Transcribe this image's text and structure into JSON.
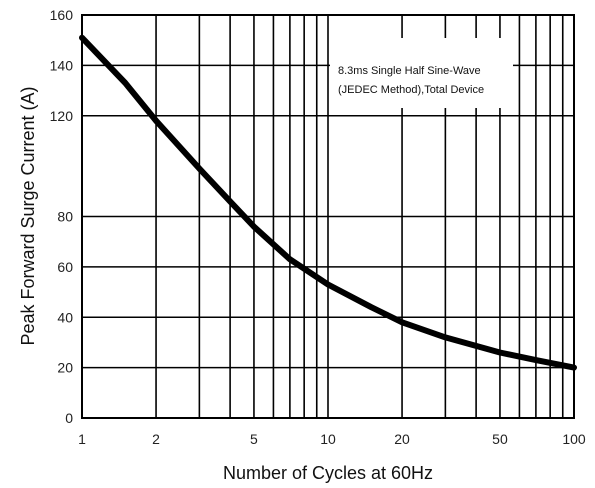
{
  "chart_data": {
    "type": "line",
    "title": "",
    "xlabel": "Number of Cycles at 60Hz",
    "ylabel": "Peak Forward Surge Current (A)",
    "x_scale": "log",
    "xlim": [
      1,
      100
    ],
    "ylim": [
      0,
      160
    ],
    "x_ticks": [
      1,
      2,
      5,
      10,
      20,
      50,
      100
    ],
    "x_tick_labels": [
      "1",
      "2",
      "5",
      "10",
      "20",
      "50",
      "100"
    ],
    "x_minor_grid": [
      3,
      4,
      6,
      7,
      8,
      9,
      30,
      40,
      60,
      70,
      80,
      90
    ],
    "y_ticks": [
      0,
      20,
      40,
      60,
      80,
      120,
      140,
      160
    ],
    "y_tick_labels": [
      "0",
      "20",
      "40",
      "60",
      "80",
      "120",
      "140",
      "160"
    ],
    "grid": true,
    "annotation": [
      "8.3ms Single Half Sine-Wave",
      "(JEDEC Method),Total Device"
    ],
    "series": [
      {
        "x": [
          1,
          1.5,
          2,
          3,
          4,
          5,
          7,
          10,
          15,
          20,
          30,
          50,
          70,
          100
        ],
        "y": [
          151,
          133,
          118,
          99,
          86,
          76,
          63,
          53,
          44,
          38,
          32,
          26,
          23,
          20
        ],
        "color": "#000000"
      }
    ]
  }
}
